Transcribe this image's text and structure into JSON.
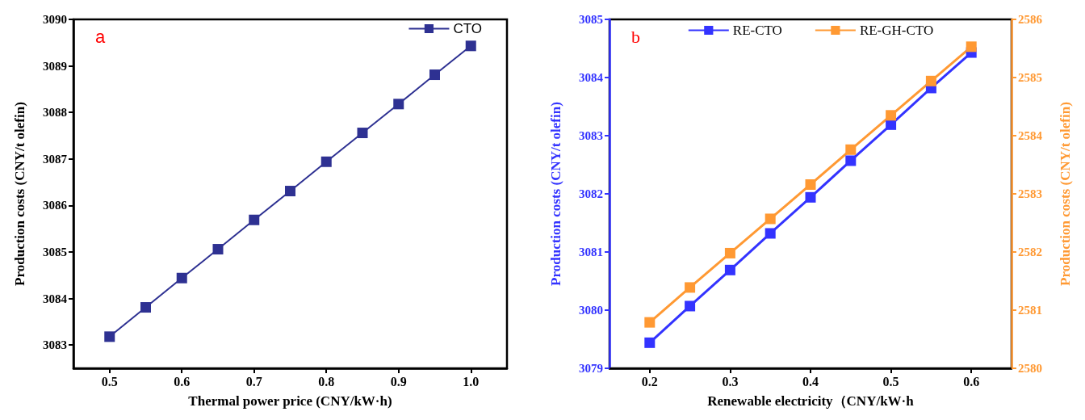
{
  "chart_data": [
    {
      "type": "line",
      "xlabel": "Thermal power price (CNY/kW·h)",
      "ylabel": "Production costs (CNY/t olefin)",
      "annotations": [
        "a"
      ],
      "x": [
        0.5,
        0.55,
        0.6,
        0.65,
        0.7,
        0.75,
        0.8,
        0.85,
        0.9,
        0.95,
        1.0
      ],
      "series": [
        {
          "name": "CTO",
          "color": "#2e3192",
          "values": [
            3083.18,
            3083.81,
            3084.44,
            3085.06,
            3085.69,
            3086.31,
            3086.94,
            3087.56,
            3088.18,
            3088.81,
            3089.43
          ]
        }
      ],
      "xlim": [
        0.45,
        1.05
      ],
      "xticks": [
        0.5,
        0.6,
        0.7,
        0.8,
        0.9,
        {
          "value": 1,
          "label": "1.0"
        }
      ],
      "ylim": [
        3082.5,
        3090
      ],
      "yticks": [
        3083,
        3084,
        3085,
        3086,
        3087,
        3088,
        3089,
        3090
      ],
      "grid": false,
      "legend": "top right",
      "marker": "square",
      "line_style": "solid"
    },
    {
      "type": "line",
      "xlabel": "Renewable electricity（CNY/kW·h",
      "ylabel": "Production costs (CNY/t olefin)",
      "y2label": "Production costs (CNY/t olefin)",
      "annotations": [
        "b"
      ],
      "x": [
        0.2,
        0.25,
        0.3,
        0.35,
        0.4,
        0.45,
        0.5,
        0.55,
        0.6
      ],
      "series": [
        {
          "name": "RE-CTO",
          "color": "#3333ff",
          "values": [
            3079.44,
            3080.07,
            3080.69,
            3081.32,
            3081.94,
            3082.57,
            3083.19,
            3083.82,
            3084.43
          ]
        },
        {
          "name": "RE-GH-CTO",
          "color": "#ff9933",
          "axis": "y2",
          "values": [
            2580.79,
            2581.39,
            2581.98,
            2582.57,
            2583.16,
            2583.76,
            2584.35,
            2584.94,
            2585.53
          ]
        }
      ],
      "xlim": [
        0.15,
        0.65
      ],
      "xticks": [
        0.2,
        0.3,
        0.4,
        0.5,
        0.6
      ],
      "ylim": [
        3079,
        3085
      ],
      "yticks": [
        3079,
        3080,
        3081,
        3082,
        3083,
        3084,
        3085
      ],
      "y2lim": [
        2580,
        2586
      ],
      "y2ticks": [
        2580,
        2581,
        2582,
        2583,
        2584,
        2585,
        2586
      ],
      "grid": false,
      "legend": "top",
      "marker": "square",
      "line_style": "solid"
    }
  ]
}
